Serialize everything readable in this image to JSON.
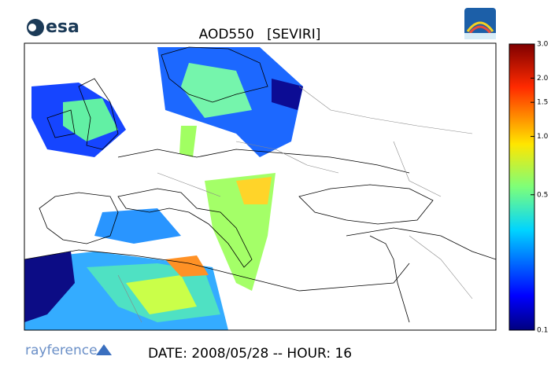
{
  "header": {
    "logo": "esa",
    "title": "AOD550   [SEVIRI]"
  },
  "colorbar": {
    "scale": "log",
    "lim": [
      0.1,
      3
    ],
    "ticks": [
      {
        "value": 3,
        "label": "3.0"
      },
      {
        "value": 2,
        "label": "2.0"
      },
      1.5,
      {
        "value": 1,
        "label": "1.0"
      },
      0.5,
      0.1
    ]
  },
  "footer": {
    "brand": "rayference",
    "date": "DATE: 2008/05/28 -- HOUR: 16"
  }
}
